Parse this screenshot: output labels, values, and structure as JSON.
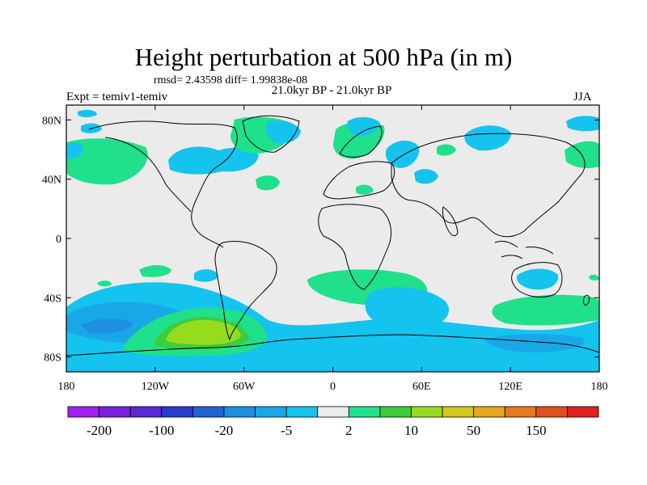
{
  "title": "Height perturbation at 500 hPa (in m)",
  "stats": "rmsd= 2.43598 diff= 1.99838e-08",
  "period": "21.0kyr BP - 21.0kyr BP",
  "expt": "Expt = temiv1-temiv",
  "season": "JJA",
  "lat_labels": [
    "80N",
    "40N",
    "0",
    "40S",
    "80S"
  ],
  "lon_labels": [
    "180",
    "120W",
    "60W",
    "0",
    "60E",
    "120E",
    "180"
  ],
  "colorbar": {
    "colors": [
      "#a020f0",
      "#7a1fe0",
      "#5a28d8",
      "#2a3ccf",
      "#1e64d2",
      "#1e8fe0",
      "#18a8e8",
      "#14c4ee",
      "#ebebeb",
      "#20e08c",
      "#3ccc3c",
      "#96dc1e",
      "#d2c81e",
      "#e6a81e",
      "#e6781e",
      "#e0501e",
      "#e02020"
    ],
    "labels": [
      "-200",
      "-100",
      "-20",
      "-5",
      "2",
      "10",
      "50",
      "150"
    ]
  },
  "map_data": {
    "fill_colors": {
      "background": "#ebebeb",
      "light_blue": "#14c4ee",
      "mid_blue": "#18a8e8",
      "blue": "#1e8fe0",
      "dark_blue": "#1e64d2",
      "teal_green": "#20e08c",
      "green": "#3ccc3c",
      "yellow_green": "#96dc1e"
    },
    "projection": "cylindrical equidistant",
    "lon_range": [
      -180,
      180
    ],
    "lat_range": [
      -90,
      90
    ]
  }
}
